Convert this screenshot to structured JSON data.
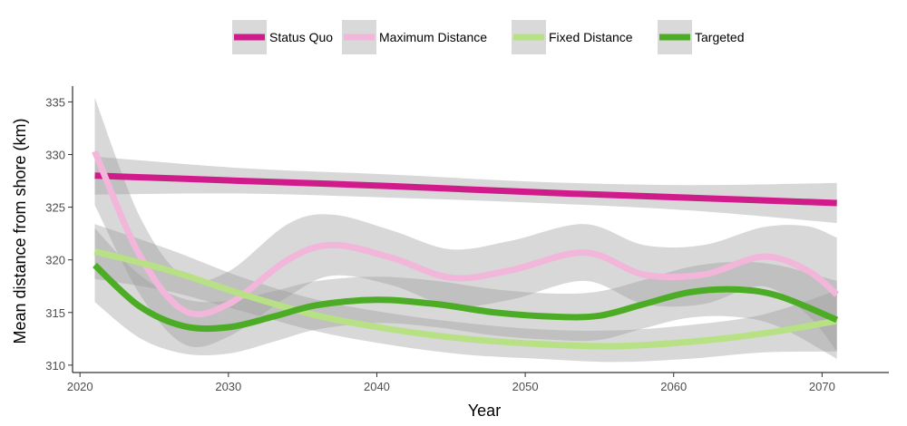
{
  "chart_data": {
    "type": "line",
    "xlabel": "Year",
    "ylabel": "Mean distance from shore (km)",
    "xlim": [
      2019.5,
      2074.5
    ],
    "ylim": [
      309.3,
      336.5
    ],
    "x_ticks": [
      2020,
      2030,
      2040,
      2050,
      2060,
      2070
    ],
    "y_ticks": [
      310,
      315,
      320,
      325,
      330,
      335
    ],
    "grid": false,
    "legend_position": "top",
    "series": [
      {
        "name": "Status Quo",
        "color": "#d01c8b",
        "x": [
          2021,
          2031,
          2041,
          2051,
          2061,
          2071
        ],
        "y": [
          328.0,
          327.5,
          327.0,
          326.4,
          325.9,
          325.4
        ],
        "lower": [
          326.2,
          326.3,
          325.9,
          325.4,
          324.7,
          323.5
        ],
        "upper": [
          329.8,
          328.7,
          328.1,
          327.4,
          327.1,
          327.3
        ]
      },
      {
        "name": "Maximum Distance",
        "color": "#f1b6da",
        "x": [
          2021,
          2024,
          2027,
          2030,
          2034,
          2037,
          2041,
          2045,
          2049,
          2054,
          2058,
          2062,
          2066,
          2069,
          2071
        ],
        "y": [
          330.3,
          320.5,
          315.2,
          315.8,
          320.0,
          321.4,
          320.2,
          318.3,
          319.0,
          320.7,
          318.6,
          318.6,
          320.3,
          319.0,
          316.7
        ],
        "lower": [
          325.2,
          316.8,
          312.0,
          312.7,
          316.5,
          318.5,
          317.6,
          315.6,
          316.2,
          318.0,
          315.8,
          315.8,
          317.5,
          314.8,
          311.3
        ],
        "upper": [
          335.4,
          324.2,
          318.4,
          318.9,
          323.4,
          324.3,
          322.8,
          321.0,
          321.8,
          323.4,
          321.4,
          321.4,
          323.1,
          323.2,
          322.1
        ]
      },
      {
        "name": "Fixed Distance",
        "color": "#b8e186",
        "x": [
          2021,
          2026,
          2031,
          2036,
          2041,
          2046,
          2051,
          2056,
          2061,
          2066,
          2071
        ],
        "y": [
          320.8,
          319.0,
          316.7,
          314.7,
          313.4,
          312.5,
          312.0,
          311.8,
          312.2,
          313.0,
          314.2
        ],
        "lower": [
          318.2,
          317.0,
          315.1,
          313.2,
          311.9,
          311.0,
          310.6,
          310.3,
          310.6,
          311.2,
          311.3
        ],
        "upper": [
          323.4,
          321.0,
          318.3,
          316.2,
          314.9,
          314.0,
          313.4,
          313.3,
          313.8,
          314.8,
          317.1
        ]
      },
      {
        "name": "Targeted",
        "color": "#4dac26",
        "x": [
          2021,
          2024,
          2027,
          2030,
          2033,
          2036,
          2040,
          2044,
          2048,
          2052,
          2055,
          2058,
          2061,
          2064,
          2067,
          2071
        ],
        "y": [
          319.5,
          315.6,
          313.7,
          313.6,
          314.6,
          315.7,
          316.2,
          315.8,
          315.0,
          314.6,
          314.7,
          315.8,
          316.9,
          317.2,
          316.6,
          314.3
        ],
        "lower": [
          316.0,
          312.6,
          311.1,
          311.1,
          312.2,
          313.4,
          314.0,
          313.6,
          312.8,
          312.4,
          312.4,
          313.5,
          314.5,
          314.6,
          313.7,
          310.6
        ],
        "upper": [
          323.0,
          318.6,
          316.3,
          316.1,
          317.0,
          318.0,
          318.4,
          318.0,
          317.2,
          316.8,
          317.0,
          318.1,
          319.3,
          319.8,
          319.5,
          318.0
        ]
      }
    ]
  }
}
